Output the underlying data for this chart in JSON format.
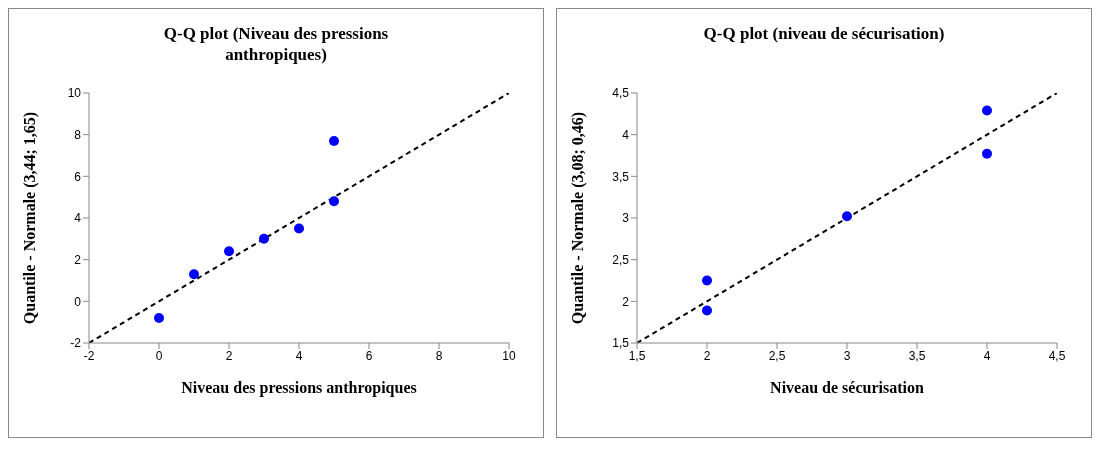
{
  "chart_data": [
    {
      "type": "scatter",
      "title": "Q-Q plot (Niveau des pressions anthropiques)",
      "xlabel": "Niveau des pressions anthropiques",
      "ylabel": "Quantile - Normale (3,44; 1,65)",
      "xlim": [
        -2,
        10
      ],
      "ylim": [
        -2,
        10
      ],
      "xticks": [
        -2,
        0,
        2,
        4,
        6,
        8,
        10
      ],
      "yticks": [
        -2,
        0,
        2,
        4,
        6,
        8,
        10
      ],
      "grid": false,
      "marker": "circle",
      "series": [
        {
          "color": "#0000ff",
          "x": [
            0,
            1,
            2,
            3,
            4,
            5,
            5
          ],
          "values": [
            -0.8,
            1.3,
            2.4,
            3.0,
            3.5,
            4.8,
            7.7
          ]
        },
        {
          "type": "line",
          "color": "#000000",
          "line_style": "dashed",
          "marker": "none",
          "x": [
            -2,
            10
          ],
          "values": [
            -2,
            10
          ]
        }
      ]
    },
    {
      "type": "scatter",
      "title": "Q-Q plot (niveau de sécurisation)",
      "xlabel": "Niveau de sécurisation",
      "ylabel": "Quantile - Normale (3,08; 0,46)",
      "xlim": [
        1.5,
        4.5
      ],
      "ylim": [
        1.5,
        4.5
      ],
      "xticks": [
        {
          "value": 1.5,
          "label": "1,5"
        },
        2,
        {
          "value": 2.5,
          "label": "2,5"
        },
        3,
        {
          "value": 3.5,
          "label": "3,5"
        },
        4,
        {
          "value": 4.5,
          "label": "4,5"
        }
      ],
      "yticks": [
        {
          "value": 1.5,
          "label": "1,5"
        },
        2,
        {
          "value": 2.5,
          "label": "2,5"
        },
        3,
        {
          "value": 3.5,
          "label": "3,5"
        },
        4,
        {
          "value": 4.5,
          "label": "4,5"
        }
      ],
      "grid": false,
      "marker": "circle",
      "series": [
        {
          "color": "#0000ff",
          "x": [
            2,
            2,
            3,
            4,
            4
          ],
          "values": [
            1.89,
            2.25,
            3.02,
            3.77,
            4.29
          ]
        },
        {
          "type": "line",
          "color": "#000000",
          "line_style": "dashed",
          "marker": "none",
          "x": [
            1.5,
            4.5
          ],
          "values": [
            1.5,
            4.5
          ]
        }
      ]
    }
  ]
}
